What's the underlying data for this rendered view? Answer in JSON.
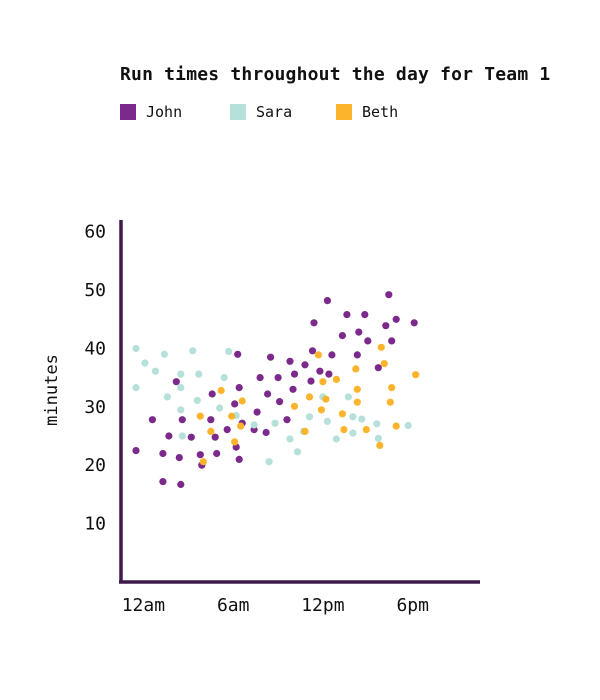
{
  "chart_data": {
    "type": "scatter",
    "title": "Run times throughout the day for Team 1",
    "ylabel": "minutes",
    "xlabel": "",
    "ylim": [
      0,
      62
    ],
    "xlim": [
      -1.5,
      22.5
    ],
    "x_ticks": [
      {
        "value": 0,
        "label": "12am"
      },
      {
        "value": 6,
        "label": "6am"
      },
      {
        "value": 12,
        "label": "12pm"
      },
      {
        "value": 18,
        "label": "6pm"
      }
    ],
    "y_ticks": [
      10,
      20,
      30,
      40,
      50,
      60
    ],
    "grid": false,
    "legend_position": "top-left",
    "series": [
      {
        "name": "John",
        "color": "#7b2a8b",
        "points": [
          [
            -0.5,
            22.5
          ],
          [
            0.6,
            27.8
          ],
          [
            1.3,
            22
          ],
          [
            1.3,
            17.2
          ],
          [
            1.7,
            25
          ],
          [
            2.2,
            34.3
          ],
          [
            2.4,
            21.3
          ],
          [
            2.5,
            16.7
          ],
          [
            2.6,
            27.8
          ],
          [
            3.2,
            24.8
          ],
          [
            3.8,
            21.8
          ],
          [
            3.9,
            20
          ],
          [
            4.5,
            27.8
          ],
          [
            4.6,
            32.2
          ],
          [
            4.8,
            24.8
          ],
          [
            4.9,
            22
          ],
          [
            5.6,
            26.1
          ],
          [
            6.1,
            30.5
          ],
          [
            6.2,
            23.1
          ],
          [
            6.3,
            39
          ],
          [
            6.4,
            33.3
          ],
          [
            6.4,
            21
          ],
          [
            6.6,
            27.2
          ],
          [
            7.4,
            26.1
          ],
          [
            7.6,
            29.1
          ],
          [
            7.8,
            35
          ],
          [
            8.2,
            25.6
          ],
          [
            8.3,
            32.2
          ],
          [
            8.5,
            38.5
          ],
          [
            9,
            35
          ],
          [
            9.1,
            30.9
          ],
          [
            9.6,
            27.8
          ],
          [
            9.8,
            37.8
          ],
          [
            10,
            33
          ],
          [
            10.1,
            35.6
          ],
          [
            10.8,
            37.2
          ],
          [
            11.2,
            34.4
          ],
          [
            11.3,
            39.6
          ],
          [
            11.4,
            44.4
          ],
          [
            11.8,
            36.1
          ],
          [
            12.3,
            48.2
          ],
          [
            12.4,
            35.6
          ],
          [
            12.6,
            38.9
          ],
          [
            13.3,
            42.2
          ],
          [
            13.6,
            45.8
          ],
          [
            14.3,
            38.9
          ],
          [
            14.4,
            42.8
          ],
          [
            14.8,
            45.8
          ],
          [
            15,
            41.3
          ],
          [
            15.7,
            36.7
          ],
          [
            16.2,
            43.9
          ],
          [
            16.4,
            49.2
          ],
          [
            16.6,
            41.3
          ],
          [
            16.9,
            45
          ],
          [
            18.1,
            44.4
          ]
        ]
      },
      {
        "name": "Sara",
        "color": "#b6e0da",
        "points": [
          [
            -0.5,
            40
          ],
          [
            -0.5,
            33.3
          ],
          [
            0.1,
            37.5
          ],
          [
            0.8,
            36.1
          ],
          [
            1.4,
            39
          ],
          [
            1.6,
            31.7
          ],
          [
            2.5,
            35.6
          ],
          [
            2.5,
            33.3
          ],
          [
            2.5,
            29.5
          ],
          [
            2.6,
            25
          ],
          [
            3.3,
            39.6
          ],
          [
            3.6,
            31.1
          ],
          [
            3.7,
            35.6
          ],
          [
            5.1,
            29.8
          ],
          [
            5.4,
            35
          ],
          [
            5.7,
            39.5
          ],
          [
            6.2,
            28.5
          ],
          [
            7.4,
            26.9
          ],
          [
            8.4,
            20.6
          ],
          [
            8.8,
            27.2
          ],
          [
            9.8,
            24.5
          ],
          [
            10.3,
            22.3
          ],
          [
            10.7,
            25.8
          ],
          [
            11.1,
            28.3
          ],
          [
            12,
            31.7
          ],
          [
            12.3,
            27.5
          ],
          [
            12.9,
            24.5
          ],
          [
            13.7,
            31.7
          ],
          [
            14,
            28.3
          ],
          [
            14,
            25.5
          ],
          [
            14.6,
            27.9
          ],
          [
            15.6,
            27.1
          ],
          [
            15.7,
            24.6
          ],
          [
            17.7,
            26.8
          ]
        ]
      },
      {
        "name": "Beth",
        "color": "#fbb42b",
        "points": [
          [
            3.8,
            28.4
          ],
          [
            4,
            20.6
          ],
          [
            4.5,
            25.8
          ],
          [
            5.2,
            32.8
          ],
          [
            5.9,
            28.4
          ],
          [
            6.1,
            24
          ],
          [
            6.5,
            26.7
          ],
          [
            6.6,
            31
          ],
          [
            10.1,
            30.1
          ],
          [
            10.8,
            25.8
          ],
          [
            11.1,
            31.7
          ],
          [
            11.7,
            38.9
          ],
          [
            11.9,
            29.5
          ],
          [
            12,
            34.3
          ],
          [
            12.2,
            31.3
          ],
          [
            12.9,
            34.7
          ],
          [
            13.3,
            28.8
          ],
          [
            13.4,
            26.1
          ],
          [
            14.2,
            36.5
          ],
          [
            14.3,
            33
          ],
          [
            14.3,
            30.8
          ],
          [
            14.9,
            26.1
          ],
          [
            15.8,
            23.4
          ],
          [
            15.9,
            40.2
          ],
          [
            16.1,
            37.4
          ],
          [
            16.5,
            30.8
          ],
          [
            16.6,
            33.3
          ],
          [
            16.9,
            26.7
          ],
          [
            18.2,
            35.5
          ]
        ]
      }
    ]
  }
}
